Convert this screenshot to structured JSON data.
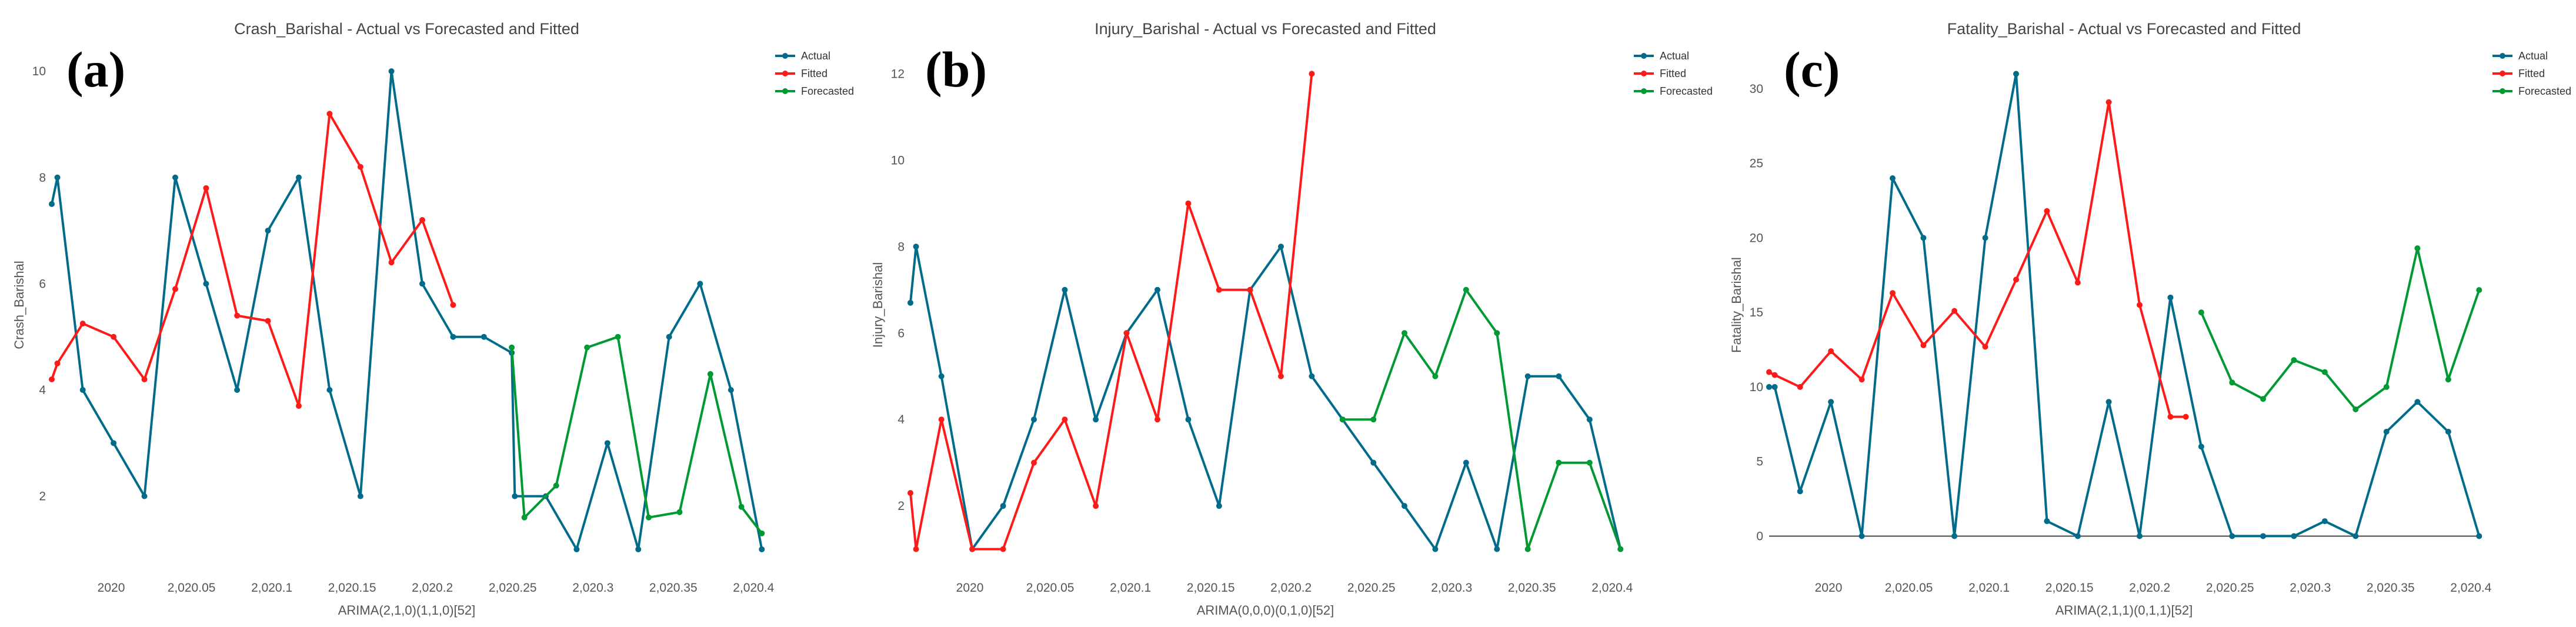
{
  "chart_data": [
    {
      "type": "line",
      "panel_label": "(a)",
      "title": "Crash_Barishal - Actual vs Forecasted and Fitted",
      "xlabel": "ARIMA(2,1,0)(1,1,0)[52]",
      "ylabel": "Crash_Barishal",
      "xlim": [
        1999.963,
        2000.405
      ],
      "ylim": [
        0.8,
        10.4
      ],
      "x_ticks": [
        2000,
        2000.05,
        2000.1,
        2000.15,
        2000.2,
        2000.25,
        2000.3,
        2000.35,
        2000.4
      ],
      "x_tick_labels": [
        "2020",
        "2,020.05",
        "2,020.1",
        "2,020.15",
        "2,020.2",
        "2,020.25",
        "2,020.3",
        "2,020.35",
        "2,020.4"
      ],
      "y_ticks": [
        2,
        4,
        6,
        8,
        10
      ],
      "y_tick_labels": [
        "2",
        "4",
        "6",
        "8",
        "10"
      ],
      "baseline": false,
      "legend": "top-right",
      "series": [
        {
          "name": "Actual",
          "color": "#006c8a",
          "x": [
            1999.963,
            1999.9665,
            1999.9823,
            2000.0015,
            2000.0207,
            2000.0399,
            2000.0591,
            2000.0784,
            2000.0976,
            2000.1168,
            2000.136,
            2000.1552,
            2000.1745,
            2000.1937,
            2000.2129,
            2000.2321,
            2000.2494
          ],
          "y": [
            7.5,
            8,
            4,
            3,
            2,
            8,
            6,
            4,
            7,
            8,
            4,
            2,
            10,
            6,
            5,
            5,
            4.7
          ]
        },
        {
          "name": "Actual",
          "color": "#006c8a",
          "x": [
            2000.2494,
            2000.2513,
            2000.2706,
            2000.2898,
            2000.309,
            2000.3282,
            2000.3474,
            2000.3667,
            2000.3859,
            2000.4051
          ],
          "y": [
            4.7,
            2,
            2,
            1,
            3,
            1,
            5,
            6,
            4,
            1
          ]
        },
        {
          "name": "Fitted",
          "color": "#ff1a1a",
          "x": [
            1999.963,
            1999.9665,
            1999.9823,
            2000.0015,
            2000.0207,
            2000.0399,
            2000.0591,
            2000.0784,
            2000.0976,
            2000.1168,
            2000.136,
            2000.1552,
            2000.1745,
            2000.1937,
            2000.2129
          ],
          "y": [
            4.2,
            4.5,
            5.25,
            5.0,
            4.2,
            5.9,
            7.8,
            5.4,
            5.3,
            3.7,
            9.2,
            8.2,
            6.4,
            7.2,
            5.6
          ]
        },
        {
          "name": "Forecasted",
          "color": "#009933",
          "x": [
            2000.2494,
            2000.2573,
            2000.2771,
            2000.2963,
            2000.3155,
            2000.3347,
            2000.3539,
            2000.3731,
            2000.3924,
            2000.4051
          ],
          "y": [
            4.8,
            1.6,
            2.2,
            4.8,
            5.0,
            1.6,
            1.7,
            4.3,
            1.8,
            1.3
          ]
        }
      ]
    },
    {
      "type": "line",
      "panel_label": "(b)",
      "title": "Injury_Barishal - Actual vs Forecasted and Fitted",
      "xlabel": "ARIMA(0,0,0)(0,1,0)[52]",
      "ylabel": "Injury_Barishal",
      "xlim": [
        1999.963,
        2000.405
      ],
      "ylim": [
        0.75,
        12.55
      ],
      "x_ticks": [
        2000,
        2000.05,
        2000.1,
        2000.15,
        2000.2,
        2000.25,
        2000.3,
        2000.35,
        2000.4
      ],
      "x_tick_labels": [
        "2020",
        "2,020.05",
        "2,020.1",
        "2,020.15",
        "2,020.2",
        "2,020.25",
        "2,020.3",
        "2,020.35",
        "2,020.4"
      ],
      "y_ticks": [
        2,
        4,
        6,
        8,
        10,
        12
      ],
      "y_tick_labels": [
        "2",
        "4",
        "6",
        "8",
        "10",
        "12"
      ],
      "baseline": false,
      "legend": "top-right",
      "series": [
        {
          "name": "Actual",
          "color": "#006c8a",
          "x": [
            1999.963,
            1999.9665,
            1999.9823,
            2000.0015,
            2000.0207,
            2000.0399,
            2000.0591,
            2000.0784,
            2000.0976,
            2000.1168,
            2000.136,
            2000.1552,
            2000.1745,
            2000.1937,
            2000.2129,
            2000.2321,
            2000.2513,
            2000.2706,
            2000.2898,
            2000.309,
            2000.3282,
            2000.3474,
            2000.3667,
            2000.3859,
            2000.4051
          ],
          "y": [
            6.7,
            8,
            5,
            1,
            2,
            4,
            7,
            4,
            6,
            7,
            4,
            2,
            7,
            8,
            5,
            4,
            3,
            2,
            1,
            3,
            1,
            5,
            5,
            4,
            1
          ]
        },
        {
          "name": "Fitted",
          "color": "#ff1a1a",
          "x": [
            1999.963,
            1999.9665,
            1999.9823,
            2000.0015,
            2000.0207,
            2000.0399,
            2000.0591,
            2000.0784,
            2000.0976,
            2000.1168,
            2000.136,
            2000.1552,
            2000.1745,
            2000.1937,
            2000.2129
          ],
          "y": [
            2.3,
            1,
            4,
            1,
            1,
            3,
            4,
            2,
            6,
            4,
            9,
            7,
            7,
            5,
            12
          ]
        },
        {
          "name": "Forecasted",
          "color": "#009933",
          "x": [
            2000.2321,
            2000.2513,
            2000.2706,
            2000.2898,
            2000.309,
            2000.3282,
            2000.3474,
            2000.3667,
            2000.3859,
            2000.4051
          ],
          "y": [
            4,
            4,
            6,
            5,
            7,
            6,
            1,
            3,
            3,
            1
          ]
        }
      ]
    },
    {
      "type": "line",
      "panel_label": "(c)",
      "title": "Fatality_Barishal - Actual vs Forecasted and Fitted",
      "xlabel": "ARIMA(2,1,1)(0,1,1)[52]",
      "ylabel": "Fatality_Barishal",
      "xlim": [
        1999.963,
        2000.405
      ],
      "ylim": [
        -1.6,
        32.6
      ],
      "x_ticks": [
        2000,
        2000.05,
        2000.1,
        2000.15,
        2000.2,
        2000.25,
        2000.3,
        2000.35,
        2000.4
      ],
      "x_tick_labels": [
        "2020",
        "2,020.05",
        "2,020.1",
        "2,020.15",
        "2,020.2",
        "2,020.25",
        "2,020.3",
        "2,020.35",
        "2,020.4"
      ],
      "y_ticks": [
        0,
        5,
        10,
        15,
        20,
        25,
        30
      ],
      "y_tick_labels": [
        "0",
        "5",
        "10",
        "15",
        "20",
        "25",
        "30"
      ],
      "baseline": true,
      "legend": "top-right",
      "series": [
        {
          "name": "Actual",
          "color": "#006c8a",
          "x": [
            1999.963,
            1999.9665,
            1999.9823,
            2000.0015,
            2000.0207,
            2000.0399,
            2000.0591,
            2000.0784,
            2000.0976,
            2000.1168,
            2000.136,
            2000.1552,
            2000.1745,
            2000.1937,
            2000.2129,
            2000.2321,
            2000.2513,
            2000.2706,
            2000.2898,
            2000.309,
            2000.3282,
            2000.3474,
            2000.3667,
            2000.3859,
            2000.4051
          ],
          "y": [
            10,
            10,
            3,
            9,
            0,
            24,
            20,
            0,
            20,
            31,
            1,
            0,
            9,
            0,
            16,
            6,
            0,
            0,
            0,
            1,
            0,
            7,
            9,
            7,
            0
          ]
        },
        {
          "name": "Fitted",
          "color": "#ff1a1a",
          "x": [
            1999.963,
            1999.9665,
            1999.9823,
            2000.0015,
            2000.0207,
            2000.0399,
            2000.0591,
            2000.0784,
            2000.0976,
            2000.1168,
            2000.136,
            2000.1552,
            2000.1745,
            2000.1937,
            2000.2129,
            2000.2225
          ],
          "y": [
            11.0,
            10.8,
            10.0,
            12.4,
            10.5,
            16.3,
            12.8,
            15.1,
            12.7,
            17.2,
            21.8,
            17.0,
            29.1,
            15.5,
            8.0,
            8.0
          ]
        },
        {
          "name": "Forecasted",
          "color": "#009933",
          "x": [
            2000.2321,
            2000.2513,
            2000.2706,
            2000.2898,
            2000.309,
            2000.3282,
            2000.3474,
            2000.3667,
            2000.3859,
            2000.4051
          ],
          "y": [
            15.0,
            10.3,
            9.2,
            11.8,
            11.0,
            8.5,
            10.0,
            19.3,
            10.5,
            16.5
          ]
        }
      ]
    }
  ]
}
